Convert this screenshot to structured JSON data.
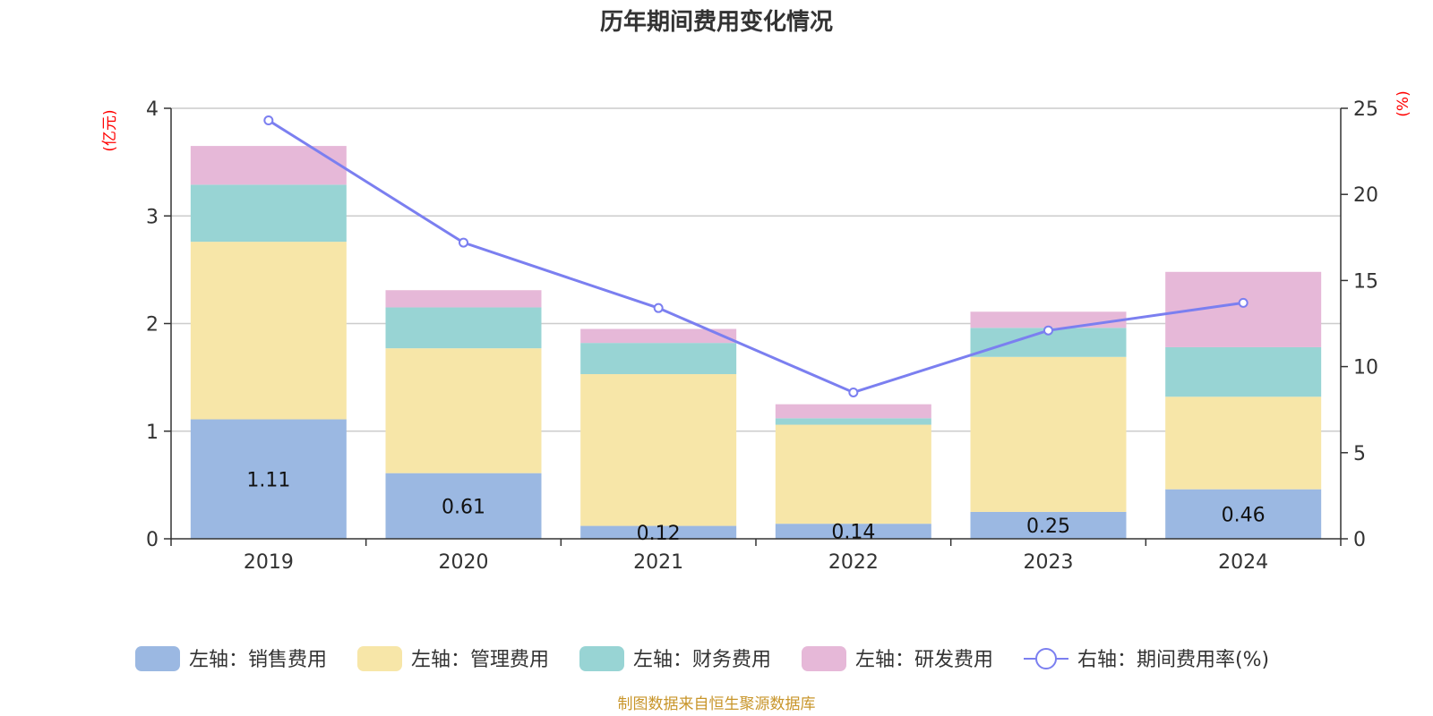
{
  "chart_data": {
    "type": "bar",
    "title": "历年期间费用变化情况",
    "left_unit": "(亿元)",
    "right_unit": "(%)",
    "categories": [
      "2019",
      "2020",
      "2021",
      "2022",
      "2023",
      "2024"
    ],
    "left_axis": {
      "min": 0,
      "max": 4,
      "ticks": [
        "0",
        "1",
        "2",
        "3",
        "4"
      ]
    },
    "right_axis": {
      "min": 0,
      "max": 25,
      "ticks": [
        "0",
        "5",
        "10",
        "15",
        "20",
        "25"
      ]
    },
    "series": [
      {
        "name": "左轴：销售费用",
        "type": "bar",
        "color": "#9bb8e2",
        "values": [
          1.11,
          0.61,
          0.12,
          0.14,
          0.25,
          0.46
        ],
        "labels": [
          "1.11",
          "0.61",
          "0.12",
          "0.14",
          "0.25",
          "0.46"
        ]
      },
      {
        "name": "左轴：管理费用",
        "type": "bar",
        "color": "#f7e6a8",
        "values": [
          1.65,
          1.16,
          1.41,
          0.92,
          1.44,
          0.86
        ]
      },
      {
        "name": "左轴：财务费用",
        "type": "bar",
        "color": "#98d4d4",
        "values": [
          0.53,
          0.38,
          0.29,
          0.06,
          0.27,
          0.46
        ]
      },
      {
        "name": "左轴：研发费用",
        "type": "bar",
        "color": "#e6b8d8",
        "values": [
          0.36,
          0.16,
          0.13,
          0.13,
          0.15,
          0.7
        ]
      },
      {
        "name": "右轴：期间费用率(%)",
        "type": "line",
        "color": "#7b7ff0",
        "values": [
          24.3,
          17.2,
          13.4,
          8.5,
          12.1,
          13.7
        ]
      }
    ],
    "grid": true,
    "legend_position": "bottom"
  },
  "source": "制图数据来自恒生聚源数据库"
}
